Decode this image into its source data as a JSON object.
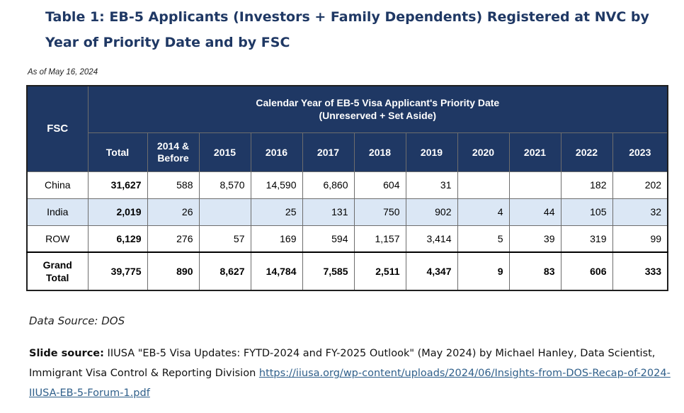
{
  "title": "Table 1: EB-5 Applicants (Investors + Family Dependents) Registered at NVC by Year of Priority Date and by FSC",
  "as_of": "As of May 16, 2024",
  "table": {
    "fsc_header": "FSC",
    "span_header_line1": "Calendar Year of EB-5 Visa Applicant's Priority Date",
    "span_header_line2": "(Unreserved + Set Aside)",
    "columns": [
      "Total",
      "2014 &\nBefore",
      "2015",
      "2016",
      "2017",
      "2018",
      "2019",
      "2020",
      "2021",
      "2022",
      "2023"
    ],
    "col_total": "Total",
    "col_2014_l1": "2014 &",
    "col_2014_l2": "Before",
    "col_2015": "2015",
    "col_2016": "2016",
    "col_2017": "2017",
    "col_2018": "2018",
    "col_2019": "2019",
    "col_2020": "2020",
    "col_2021": "2021",
    "col_2022": "2022",
    "col_2023": "2023",
    "rows": [
      {
        "fsc": "China",
        "cells": [
          "31,627",
          "588",
          "8,570",
          "14,590",
          "6,860",
          "604",
          "31",
          "",
          "",
          "182",
          "202"
        ]
      },
      {
        "fsc": "India",
        "cells": [
          "2,019",
          "26",
          "",
          "25",
          "131",
          "750",
          "902",
          "4",
          "44",
          "105",
          "32"
        ]
      },
      {
        "fsc": "ROW",
        "cells": [
          "6,129",
          "276",
          "57",
          "169",
          "594",
          "1,157",
          "3,414",
          "5",
          "39",
          "319",
          "99"
        ]
      }
    ],
    "grand": {
      "label_l1": "Grand",
      "label_l2": "Total",
      "cells": [
        "39,775",
        "890",
        "8,627",
        "14,784",
        "7,585",
        "2,511",
        "4,347",
        "9",
        "83",
        "606",
        "333"
      ]
    }
  },
  "data_source": "Data Source: DOS",
  "slide_source": {
    "label": "Slide source:",
    "text": " IIUSA \"EB-5 Visa Updates: FYTD-2024 and FY-2025 Outlook\" (May 2024) by Michael Hanley, Data Scientist, Immigrant Visa Control & Reporting Division  ",
    "link": "https://iiusa.org/wp-content/uploads/2024/06/Insights-from-DOS-Recap-of-2024-IIUSA-EB-5-Forum-1.pdf"
  }
}
